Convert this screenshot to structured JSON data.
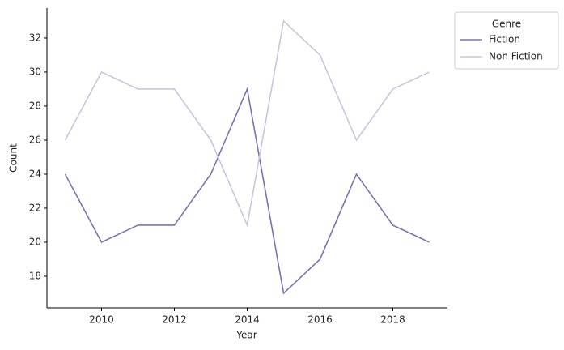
{
  "chart_data": {
    "type": "line",
    "x_label": "Year",
    "y_label": "Count",
    "x": [
      2009,
      2010,
      2011,
      2012,
      2013,
      2014,
      2015,
      2016,
      2017,
      2018,
      2019
    ],
    "series": [
      {
        "name": "Fiction",
        "color": "#7a72b5",
        "values": [
          24,
          20,
          21,
          21,
          24,
          29,
          17,
          19,
          24,
          21,
          20
        ]
      },
      {
        "name": "Non Fiction",
        "color": "#c8c5e2",
        "values": [
          26,
          30,
          29,
          29,
          26,
          21,
          33,
          31,
          26,
          29,
          30
        ]
      }
    ],
    "legend_title": "Genre",
    "legend_position": "outside-right",
    "xlim": [
      2008.5,
      2019.5
    ],
    "xticks": [
      2010,
      2012,
      2014,
      2016,
      2018
    ],
    "ylim": [
      16.14,
      33.76
    ],
    "yticks": [
      18,
      20,
      22,
      24,
      26,
      28,
      30,
      32
    ]
  }
}
